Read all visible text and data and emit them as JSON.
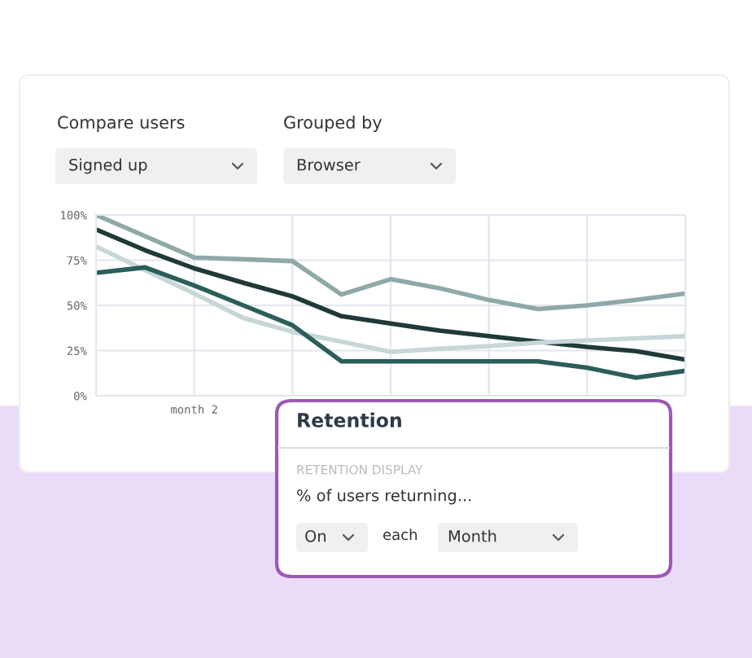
{
  "chart_data": {
    "type": "line",
    "categories": [
      null,
      null,
      "month 2",
      null,
      null,
      null,
      null,
      null,
      null,
      null,
      null,
      null,
      null
    ],
    "series": [
      {
        "color": "#8fa8a8",
        "values": [
          100,
          88.3,
          76.5,
          75.5,
          74.5,
          56,
          64.5,
          59.5,
          53,
          48,
          50,
          53,
          56.5
        ]
      },
      {
        "color": "#1f3a38",
        "values": [
          92,
          80.5,
          70.5,
          62.5,
          55,
          44,
          40,
          36,
          33,
          30,
          27,
          24.7,
          20
        ]
      },
      {
        "color": "#c7d6d6",
        "values": [
          82.6,
          69.5,
          56.5,
          43,
          35.4,
          29.9,
          24.3,
          26,
          27.5,
          29.4,
          30.6,
          31.8,
          33
        ]
      },
      {
        "color": "#2b5e5a",
        "values": [
          68,
          71,
          61,
          50,
          39,
          19,
          19,
          19,
          19,
          19,
          15.5,
          10,
          13.8
        ]
      }
    ],
    "ylim": [
      0,
      100
    ],
    "yticks": [
      {
        "value": 0,
        "label": "0%"
      },
      {
        "value": 25,
        "label": "25%"
      },
      {
        "value": 50,
        "label": "50%"
      },
      {
        "value": 75,
        "label": "75%"
      },
      {
        "value": 100,
        "label": "100%"
      }
    ],
    "grid": true,
    "marker": "none",
    "line_style": "solid",
    "annotations": [
      "Compare users",
      "Signed up",
      "Grouped by",
      "Browser",
      "Retention",
      "RETENTION DISPLAY",
      "% of users returning...",
      "On",
      "each",
      "Month"
    ]
  }
}
